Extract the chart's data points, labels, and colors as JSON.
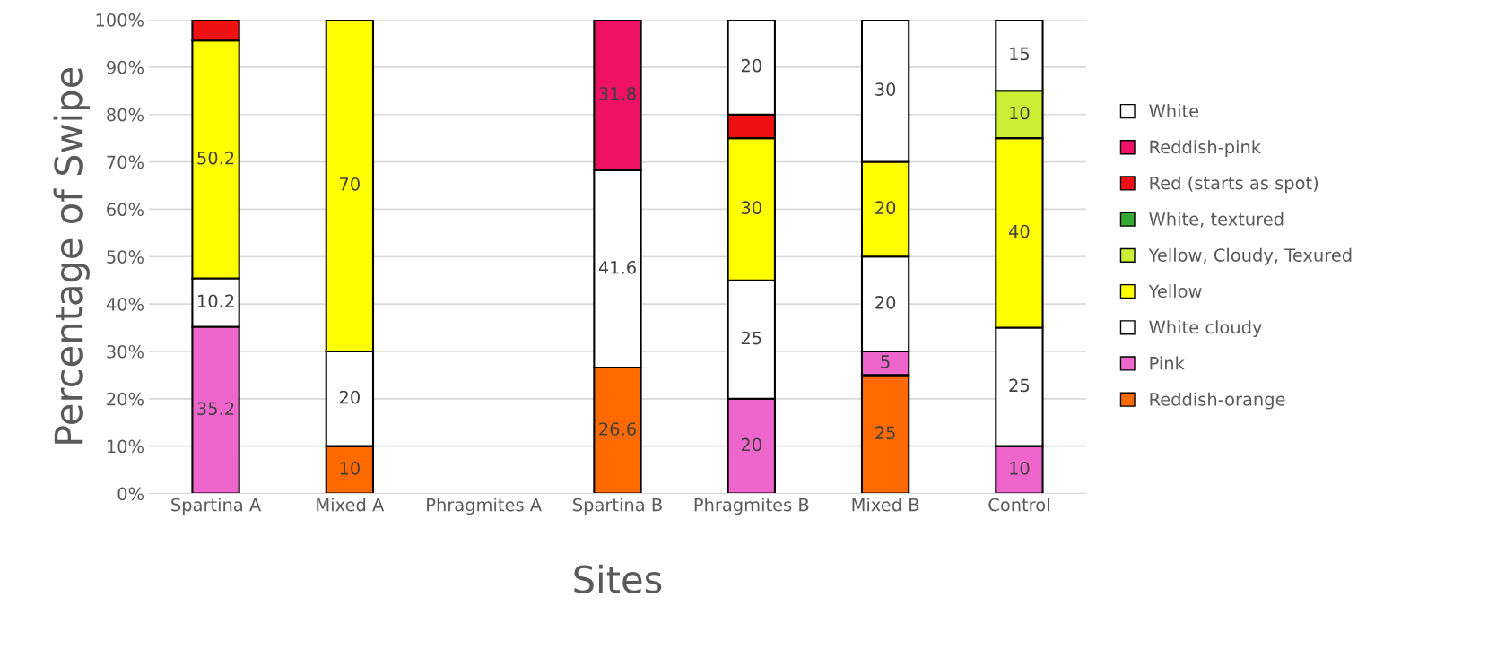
{
  "chart_data": {
    "type": "bar",
    "stacked": true,
    "xlabel": "Sites",
    "ylabel": "Percentage of Swipe",
    "categories": [
      "Spartina A",
      "Mixed A",
      "Phragmites A",
      "Spartina B",
      "Phragmites B",
      "Mixed B",
      "Control"
    ],
    "series": [
      {
        "name": "Reddish-orange",
        "color": "#ff6a00",
        "values": [
          null,
          10,
          null,
          26.6,
          null,
          25,
          null
        ],
        "value_labels": [
          null,
          "10",
          null,
          "26.6",
          null,
          "25",
          null
        ]
      },
      {
        "name": "Pink",
        "color": "#ee66cc",
        "values": [
          35.2,
          null,
          null,
          null,
          20,
          5,
          10
        ],
        "value_labels": [
          "35.2",
          null,
          null,
          null,
          "20",
          "5",
          "10"
        ]
      },
      {
        "name": "White cloudy",
        "color": "#ffffff",
        "values": [
          10.2,
          20,
          null,
          41.6,
          25,
          20,
          25
        ],
        "value_labels": [
          "10.2",
          "20",
          null,
          "41.6",
          "25",
          "20",
          "25"
        ]
      },
      {
        "name": "Yellow",
        "color": "#ffff00",
        "values": [
          50.2,
          70,
          null,
          null,
          30,
          20,
          40
        ],
        "value_labels": [
          "50.2",
          "70",
          null,
          null,
          "30",
          "20",
          "40"
        ]
      },
      {
        "name": "Yellow, Cloudy, Texured",
        "color": "#ccee33",
        "values": [
          null,
          null,
          null,
          null,
          null,
          null,
          10
        ],
        "value_labels": [
          null,
          null,
          null,
          null,
          null,
          null,
          "10"
        ]
      },
      {
        "name": "White, textured",
        "color": "#33aa33",
        "values": [
          null,
          null,
          null,
          null,
          null,
          null,
          null
        ]
      },
      {
        "name": "Red (starts as spot)",
        "color": "#ee1111",
        "values": [
          4.4,
          null,
          null,
          null,
          5,
          null,
          null
        ]
      },
      {
        "name": "Reddish-pink",
        "color": "#ee1166",
        "values": [
          null,
          null,
          null,
          31.8,
          null,
          null,
          null
        ],
        "value_labels": [
          null,
          null,
          null,
          "31.8",
          null,
          null,
          null
        ]
      },
      {
        "name": "White",
        "color": "#ffffff",
        "values": [
          null,
          null,
          null,
          null,
          20,
          30,
          15
        ],
        "value_labels": [
          null,
          null,
          null,
          null,
          "20",
          "30",
          "15"
        ]
      }
    ],
    "ylim": [
      0,
      100
    ],
    "yticks": [
      {
        "value": 0,
        "label": "0%"
      },
      {
        "value": 10,
        "label": "10%"
      },
      {
        "value": 20,
        "label": "20%"
      },
      {
        "value": 30,
        "label": "30%"
      },
      {
        "value": 40,
        "label": "40%"
      },
      {
        "value": 50,
        "label": "50%"
      },
      {
        "value": 60,
        "label": "60%"
      },
      {
        "value": 70,
        "label": "70%"
      },
      {
        "value": 80,
        "label": "80%"
      },
      {
        "value": 90,
        "label": "90%"
      },
      {
        "value": 100,
        "label": "100%"
      }
    ],
    "grid": "y",
    "legend": "right"
  }
}
